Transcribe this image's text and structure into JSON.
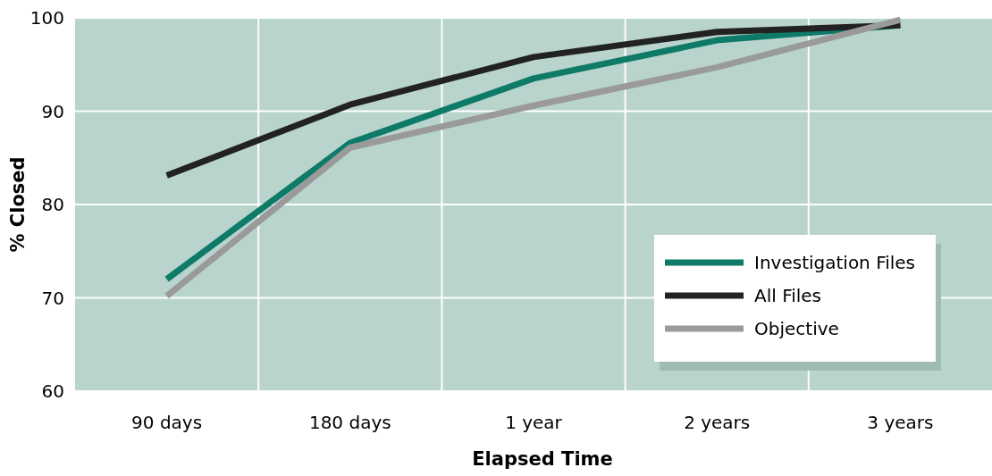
{
  "chart_data": {
    "type": "line",
    "xlabel": "Elapsed Time",
    "ylabel": "% Closed",
    "categories": [
      "90 days",
      "180 days",
      "1 year",
      "2 years",
      "3 years"
    ],
    "series": [
      {
        "name": "Investigation Files",
        "color": "#0e7a68",
        "values": [
          72.0,
          86.6,
          93.5,
          97.6,
          99.2
        ]
      },
      {
        "name": "All Files",
        "color": "#222222",
        "values": [
          83.1,
          90.7,
          95.8,
          98.5,
          99.2
        ]
      },
      {
        "name": "Objective",
        "color": "#9a9a9a",
        "values": [
          70.2,
          86.1,
          90.6,
          94.7,
          99.8
        ]
      }
    ],
    "ylim": [
      60,
      100
    ],
    "yticks": [
      60,
      70,
      80,
      90,
      100
    ],
    "grid": true,
    "legend": "bottom right",
    "marker": "none",
    "line_style": "solid"
  }
}
